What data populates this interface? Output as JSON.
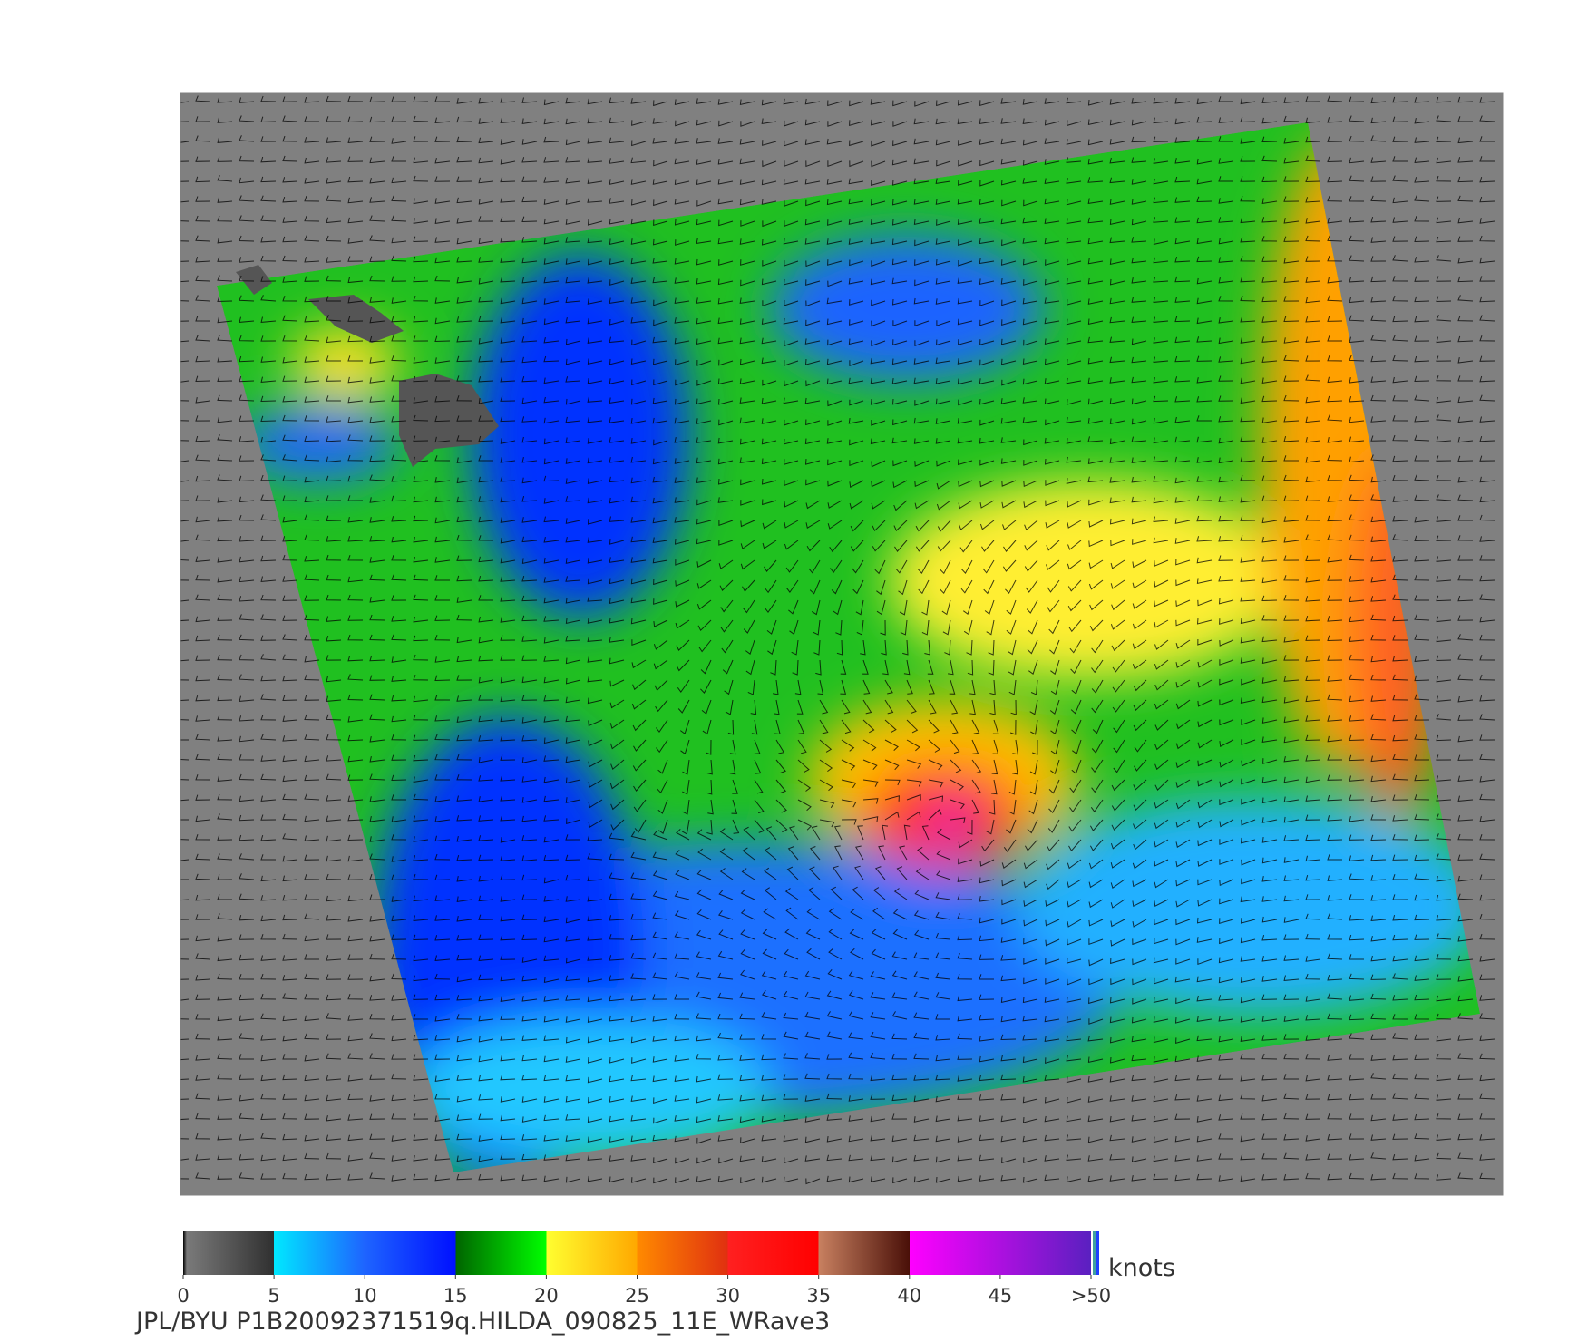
{
  "colorbar": {
    "unit": "knots",
    "xlim": [
      0,
      50
    ],
    "ticks": [
      0,
      5,
      10,
      15,
      20,
      25,
      30,
      35,
      40,
      45,
      {
        "value": 50,
        "label": ">50"
      }
    ],
    "stops": [
      {
        "value": 0,
        "color": "#000000"
      },
      {
        "value": 0.2,
        "color": "#7a7a7a"
      },
      {
        "value": 5,
        "color": "#303030"
      },
      {
        "value": 5,
        "color": "#00e8ff"
      },
      {
        "value": 10,
        "color": "#1e64ff"
      },
      {
        "value": 15,
        "color": "#0010ff"
      },
      {
        "value": 15,
        "color": "#006400"
      },
      {
        "value": 20,
        "color": "#00ff00"
      },
      {
        "value": 20,
        "color": "#ffff30"
      },
      {
        "value": 25,
        "color": "#ffa800"
      },
      {
        "value": 25,
        "color": "#ff8a00"
      },
      {
        "value": 30,
        "color": "#e03010"
      },
      {
        "value": 30,
        "color": "#ff2020"
      },
      {
        "value": 35,
        "color": "#ff0000"
      },
      {
        "value": 35,
        "color": "#c88060"
      },
      {
        "value": 40,
        "color": "#4a1008"
      },
      {
        "value": 40,
        "color": "#ff00ff"
      },
      {
        "value": 50,
        "color": "#5a20c0"
      }
    ]
  },
  "caption": "JPL/BYU  P1B20092371519q.HILDA_090825_11E_WRave3"
}
